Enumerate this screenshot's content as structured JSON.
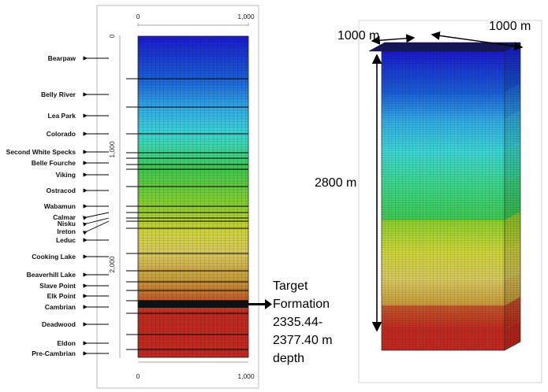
{
  "left_panel": {
    "top_axis_ticks": [
      "0",
      "1,000"
    ],
    "bottom_axis_ticks": [
      "0",
      "1,000"
    ],
    "depth_axis_ticks": [
      "0",
      "1,000",
      "2,000"
    ],
    "formations": [
      "Bearpaw",
      "Belly River",
      "Lea Park",
      "Colorado",
      "Second White Specks",
      "Belle Fourche",
      "Viking",
      "Ostracod",
      "Wabamun",
      "Calmar",
      "Nisku",
      "Ireton",
      "Leduc",
      "Cooking Lake",
      "Beaverhill Lake",
      "Slave Point",
      "Elk Point",
      "Cambrian",
      "Deadwood",
      "Eldon",
      "Pre-Cambrian"
    ]
  },
  "target_annotation": {
    "line1": "Target",
    "line2": "Formation",
    "line3": "2335.44-",
    "line4": "2377.40 m",
    "line5": "depth"
  },
  "block_3d": {
    "width_label": "1000 m",
    "depth_label": "1000 m",
    "height_label": "2800 m"
  },
  "colors": {
    "layer_ramp": [
      "#1a1acc",
      "#1a5fd6",
      "#33a8e6",
      "#3dd6d6",
      "#3dd690",
      "#40c850",
      "#8ccf2e",
      "#cfd63a",
      "#d8c860",
      "#c89a3a",
      "#c05a2a",
      "#c02a20"
    ]
  }
}
